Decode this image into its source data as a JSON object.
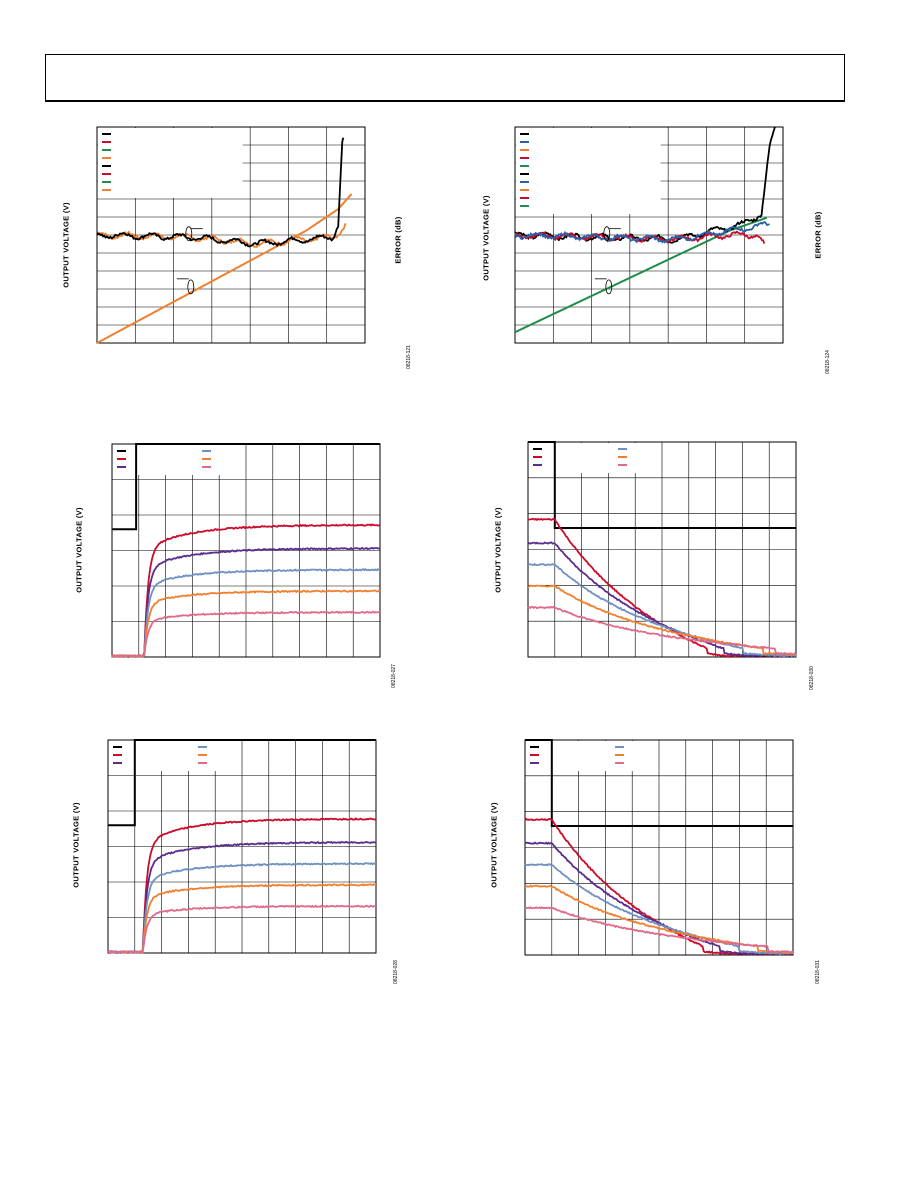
{
  "colors": {
    "black": "#000000",
    "red": "#cc0a2a",
    "green": "#1e8c4a",
    "orange": "#f08030",
    "blue": "#2e5ea8",
    "purple": "#5a2d8c",
    "slate": "#7090c0",
    "pink": "#e06a8a"
  },
  "chart_data": [
    {
      "type": "line",
      "ylabel": "OUTPUT VOLTAGE (V)",
      "y2label": "ERROR (dB)",
      "figure_id": "08218-121",
      "grid": true,
      "legend_placement": "top-left",
      "legend_swatches": [
        "black",
        "red",
        "green",
        "orange",
        "black",
        "red",
        "green",
        "orange"
      ],
      "series": [
        {
          "color": "orange",
          "role": "output-ramp",
          "values": [
            [
              0,
              0
            ],
            [
              0.78,
              0.52
            ],
            [
              0.9,
              0.62
            ],
            [
              0.95,
              0.69
            ]
          ]
        },
        {
          "color": "orange",
          "role": "error",
          "values": [
            [
              0,
              0.5
            ],
            [
              0.35,
              0.49
            ],
            [
              0.6,
              0.46
            ],
            [
              0.88,
              0.49
            ],
            [
              0.9,
              0.51
            ],
            [
              0.93,
              0.55
            ]
          ]
        },
        {
          "color": "black",
          "role": "error",
          "values": [
            [
              0,
              0.5
            ],
            [
              0.35,
              0.49
            ],
            [
              0.6,
              0.46
            ],
            [
              0.88,
              0.49
            ],
            [
              0.9,
              0.55
            ],
            [
              0.915,
              0.93
            ],
            [
              0.92,
              0.95
            ]
          ]
        }
      ]
    },
    {
      "type": "line",
      "ylabel": "OUTPUT VOLTAGE (V)",
      "y2label": "ERROR (dB)",
      "figure_id": "08218-124",
      "grid": true,
      "legend_placement": "top-left",
      "legend_swatches": [
        "black",
        "blue",
        "orange",
        "red",
        "green",
        "black",
        "blue",
        "orange",
        "red",
        "green"
      ],
      "series": [
        {
          "color": "green",
          "role": "output-ramp",
          "values": [
            [
              0,
              0.05
            ],
            [
              0.8,
              0.52
            ],
            [
              0.94,
              0.58
            ]
          ]
        },
        {
          "color": "black",
          "role": "error",
          "values": [
            [
              0,
              0.5
            ],
            [
              0.6,
              0.48
            ],
            [
              0.85,
              0.55
            ],
            [
              0.92,
              0.6
            ],
            [
              0.95,
              0.9
            ],
            [
              0.97,
              1.0
            ]
          ]
        },
        {
          "color": "red",
          "role": "error",
          "values": [
            [
              0,
              0.5
            ],
            [
              0.6,
              0.48
            ],
            [
              0.8,
              0.5
            ],
            [
              0.9,
              0.5
            ],
            [
              0.93,
              0.46
            ]
          ]
        },
        {
          "color": "blue",
          "role": "error",
          "values": [
            [
              0,
              0.5
            ],
            [
              0.6,
              0.48
            ],
            [
              0.85,
              0.53
            ],
            [
              0.95,
              0.55
            ]
          ]
        }
      ]
    },
    {
      "type": "line",
      "ylabel": "OUTPUT VOLTAGE (V)",
      "figure_id": "08218-027",
      "grid": true,
      "legend_placement": "top-left",
      "legend_swatches": [
        "black",
        "red",
        "purple",
        "slate",
        "orange",
        "pink"
      ],
      "step": {
        "low_y": 0.6,
        "high_y": 1.0,
        "t": 0.09
      },
      "series": [
        {
          "color": "red",
          "final": 0.62
        },
        {
          "color": "purple",
          "final": 0.51
        },
        {
          "color": "slate",
          "final": 0.41
        },
        {
          "color": "orange",
          "final": 0.31
        },
        {
          "color": "pink",
          "final": 0.21
        }
      ]
    },
    {
      "type": "line",
      "ylabel": "OUTPUT VOLTAGE (V)",
      "figure_id": "08218-030",
      "grid": true,
      "legend_placement": "top-left",
      "legend_swatches": [
        "black",
        "red",
        "purple",
        "slate",
        "orange",
        "pink"
      ],
      "step": {
        "low_y": 0.6,
        "high_y": 1.0,
        "t": 0.1
      },
      "series": [
        {
          "color": "red",
          "initial": 0.64
        },
        {
          "color": "purple",
          "initial": 0.53
        },
        {
          "color": "slate",
          "initial": 0.43
        },
        {
          "color": "orange",
          "initial": 0.33
        },
        {
          "color": "pink",
          "initial": 0.23
        }
      ]
    },
    {
      "type": "line",
      "ylabel": "OUTPUT VOLTAGE (V)",
      "figure_id": "08218-028",
      "grid": true,
      "legend_placement": "top-left",
      "legend_swatches": [
        "black",
        "red",
        "purple",
        "slate",
        "orange",
        "pink"
      ],
      "step": {
        "low_y": 0.6,
        "high_y": 1.0,
        "t": 0.1
      },
      "series": [
        {
          "color": "red",
          "final": 0.63
        },
        {
          "color": "purple",
          "final": 0.52
        },
        {
          "color": "slate",
          "final": 0.42
        },
        {
          "color": "orange",
          "final": 0.32
        },
        {
          "color": "pink",
          "final": 0.22
        }
      ]
    },
    {
      "type": "line",
      "ylabel": "OUTPUT VOLTAGE (V)",
      "figure_id": "08218-031",
      "grid": true,
      "legend_placement": "top-left",
      "legend_swatches": [
        "black",
        "red",
        "purple",
        "slate",
        "orange",
        "pink"
      ],
      "step": {
        "low_y": 0.6,
        "high_y": 1.0,
        "t": 0.1
      },
      "series": [
        {
          "color": "red",
          "initial": 0.63
        },
        {
          "color": "purple",
          "initial": 0.52
        },
        {
          "color": "slate",
          "initial": 0.42
        },
        {
          "color": "orange",
          "initial": 0.32
        },
        {
          "color": "pink",
          "initial": 0.22
        }
      ]
    }
  ]
}
